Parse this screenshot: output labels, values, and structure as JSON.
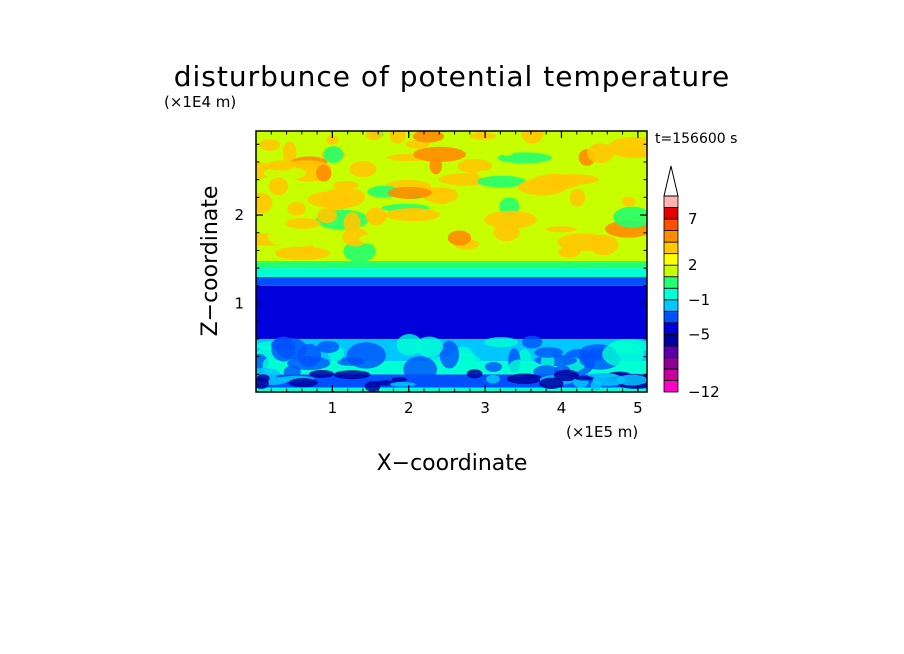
{
  "chart_data": {
    "type": "heatmap",
    "title": "disturbunce of potential temperature",
    "time_label": "t=156600 s",
    "xlabel": "X−coordinate",
    "ylabel": "Z−coordinate",
    "x_scale_label": "(×1E5 m)",
    "y_scale_label": "(×1E4 m)",
    "xlim": [
      0,
      5.12
    ],
    "ylim": [
      0,
      2.95
    ],
    "x_ticks": [
      "1",
      "2",
      "3",
      "4",
      "5"
    ],
    "y_ticks": [
      "1",
      "2"
    ],
    "colorbar": {
      "levels": [
        -12,
        -11,
        -9,
        -8,
        -6,
        -5,
        -4,
        -3,
        -1,
        0,
        1,
        2,
        3,
        5,
        6,
        7,
        8,
        10
      ],
      "tick_labels": [
        "−12",
        "−5",
        "−1",
        "2",
        "7"
      ],
      "colors": [
        "#ff00c8",
        "#c8009b",
        "#8c0096",
        "#5a00aa",
        "#0000a0",
        "#0000dc",
        "#0050ff",
        "#00c8ff",
        "#00ffd2",
        "#23ff6e",
        "#c8ff00",
        "#ffff00",
        "#ffc800",
        "#ff8c00",
        "#ff5000",
        "#e60000",
        "#ffb4b4"
      ],
      "extend": "max"
    },
    "bands": [
      {
        "z": [
          0.0,
          0.05
        ],
        "theta": -0.5
      },
      {
        "z": [
          0.05,
          0.2
        ],
        "theta": -3.5
      },
      {
        "z": [
          0.2,
          0.35
        ],
        "theta": -0.8
      },
      {
        "z": [
          0.35,
          0.6
        ],
        "theta": -2.0
      },
      {
        "z": [
          0.6,
          1.2
        ],
        "theta": -4.5
      },
      {
        "z": [
          1.2,
          1.3
        ],
        "theta": -3.5
      },
      {
        "z": [
          1.3,
          1.4
        ],
        "theta": -0.5
      },
      {
        "z": [
          1.4,
          1.48
        ],
        "theta": 0.5
      },
      {
        "z": [
          1.48,
          2.95
        ],
        "theta": 1.5
      }
    ]
  }
}
